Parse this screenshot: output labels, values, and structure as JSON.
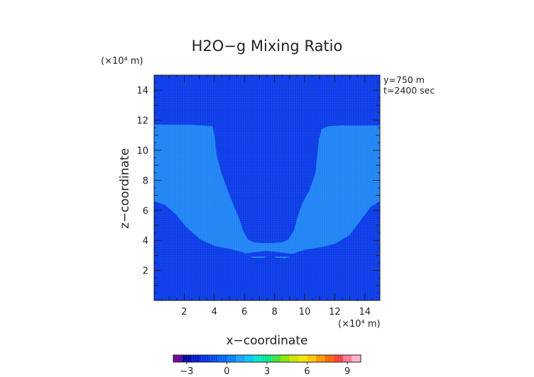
{
  "chart_data": {
    "type": "heatmap",
    "title": "H2O−g Mixing Ratio",
    "xlabel": "x−coordinate",
    "ylabel": "z−coordinate",
    "x_unit_label": "(×10⁴ m)",
    "y_unit_label": "(×10⁴ m)",
    "xlim": [
      0,
      15
    ],
    "ylim": [
      0,
      15
    ],
    "x_ticks": [
      2,
      4,
      6,
      8,
      10,
      12,
      14
    ],
    "y_ticks": [
      2,
      4,
      6,
      8,
      10,
      12,
      14
    ],
    "annotations": [
      "y=750  m",
      "t=2400  sec"
    ],
    "colorbar": {
      "range": [
        -4,
        10
      ],
      "tick_values": [
        -3,
        0,
        3,
        6,
        9
      ],
      "tick_labels": [
        "−3",
        "0",
        "3",
        "6",
        "9"
      ],
      "colors": [
        "#6a009a",
        "#0000a0",
        "#0018c8",
        "#0030e6",
        "#0048f0",
        "#0064f6",
        "#0080ff",
        "#1aa0ff",
        "#00c8ff",
        "#00e6c8",
        "#00e68c",
        "#40e040",
        "#8ce600",
        "#c8e600",
        "#f0e600",
        "#ffc800",
        "#ff9600",
        "#ff6400",
        "#ff3c3c",
        "#ff7896",
        "#ffb4c8"
      ]
    },
    "regions": [
      {
        "level": "upper (−1 to 0)",
        "color": "#0A3BE8"
      },
      {
        "level": "lower (0 to 1)",
        "color": "#1E84F5"
      }
    ]
  }
}
